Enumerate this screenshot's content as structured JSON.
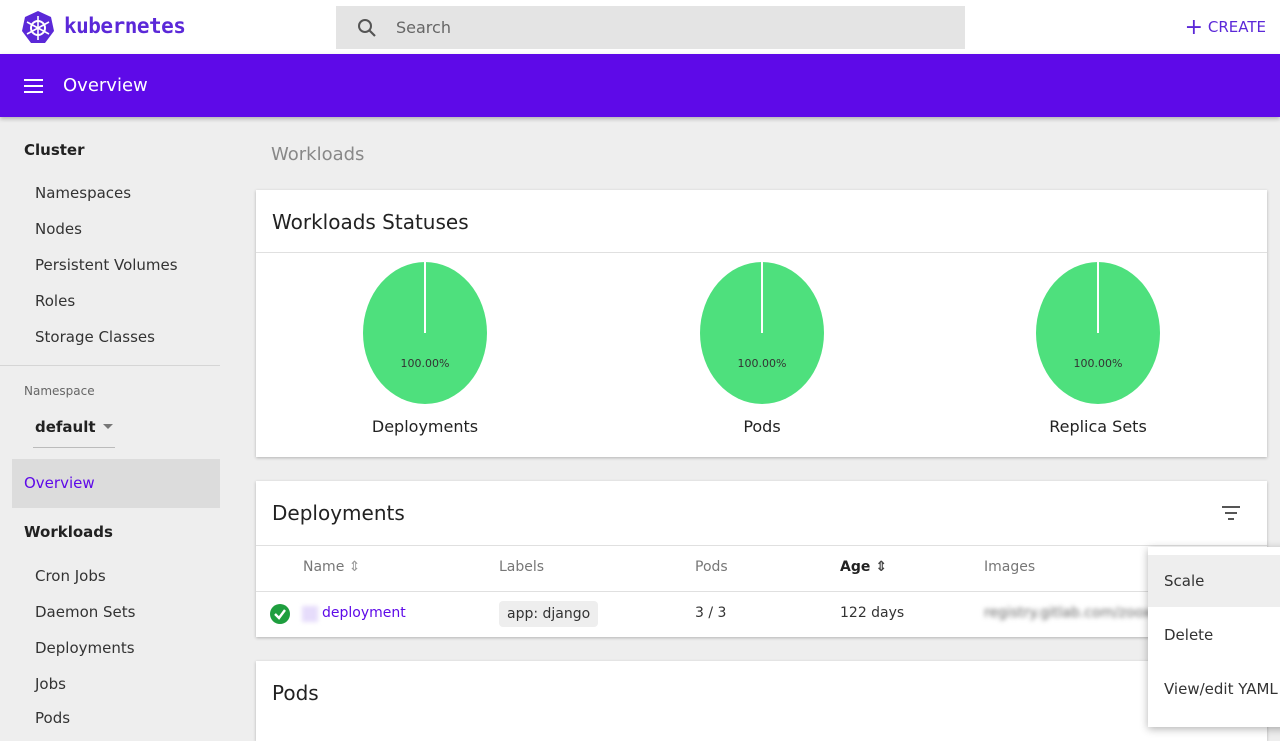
{
  "header": {
    "brand": "kubernetes",
    "search_placeholder": "Search",
    "create": "CREATE"
  },
  "toolbar": {
    "title": "Overview"
  },
  "sidebar": {
    "cluster": {
      "heading": "Cluster",
      "items": [
        "Namespaces",
        "Nodes",
        "Persistent Volumes",
        "Roles",
        "Storage Classes"
      ]
    },
    "namespace": {
      "label": "Namespace",
      "value": "default"
    },
    "active": "Overview",
    "workloads": {
      "heading": "Workloads",
      "items": [
        "Cron Jobs",
        "Daemon Sets",
        "Deployments",
        "Jobs",
        "Pods"
      ]
    }
  },
  "main": {
    "section": "Workloads",
    "statuses": {
      "title": "Workloads Statuses",
      "color": "#4ee07d",
      "charts": [
        {
          "name": "Deployments",
          "value": 100,
          "label": "100.00%"
        },
        {
          "name": "Pods",
          "value": 100,
          "label": "100.00%"
        },
        {
          "name": "Replica Sets",
          "value": 100,
          "label": "100.00%"
        }
      ]
    },
    "deployments": {
      "title": "Deployments",
      "columns": [
        "Name",
        "Labels",
        "Pods",
        "Age",
        "Images"
      ],
      "rows": [
        {
          "name": "deployment",
          "labels": "app: django",
          "pods": "3 / 3",
          "age": "122 days",
          "images": "registry.gitlab.com/zooxea"
        }
      ]
    },
    "pods": {
      "title": "Pods"
    }
  },
  "menu": {
    "items": [
      "Scale",
      "Delete",
      "View/edit YAML"
    ]
  }
}
